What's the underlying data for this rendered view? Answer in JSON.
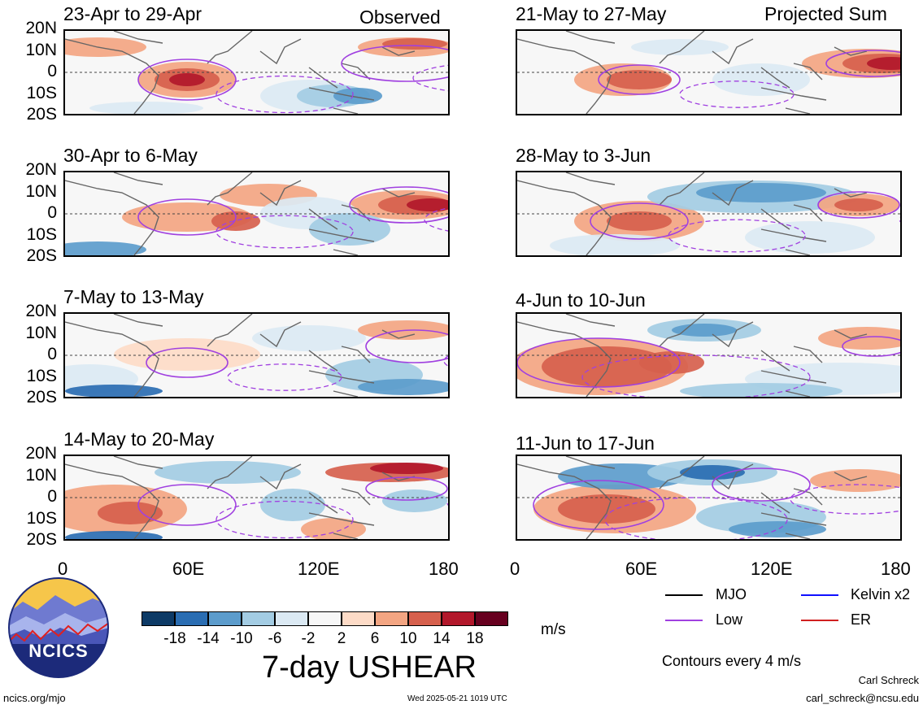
{
  "header_left": "Observed",
  "header_right": "Projected Sum",
  "panels": [
    {
      "title": "23-Apr to 29-Apr"
    },
    {
      "title": "30-Apr to 6-May"
    },
    {
      "title": "7-May to 13-May"
    },
    {
      "title": "14-May to 20-May"
    },
    {
      "title": "21-May to 27-May"
    },
    {
      "title": "28-May to 3-Jun"
    },
    {
      "title": "4-Jun to 10-Jun"
    },
    {
      "title": "11-Jun to 17-Jun"
    }
  ],
  "lat_labels": [
    "20N",
    "10N",
    "0",
    "10S",
    "20S"
  ],
  "lon_labels": [
    "0",
    "60E",
    "120E",
    "180"
  ],
  "legend": {
    "mjo": "MJO",
    "kelvin": "Kelvin x2",
    "low": "Low",
    "er": "ER",
    "colors": {
      "mjo": "#000000",
      "kelvin": "#1010ff",
      "low": "#a040e0",
      "er": "#d02020"
    },
    "contours_note": "Contours every 4 m/s"
  },
  "colorbar": {
    "labels": [
      "-18",
      "-14",
      "-10",
      "-6",
      "-2",
      "2",
      "6",
      "10",
      "14",
      "18"
    ],
    "colors": [
      "#0d3a66",
      "#2a6db2",
      "#5c9ccc",
      "#a3cce3",
      "#dbe9f3",
      "#f7f7f7",
      "#fddbc7",
      "#f3a582",
      "#d6604d",
      "#b2182b",
      "#67001f"
    ],
    "unit": "m/s",
    "title": "7-day USHEAR"
  },
  "logo": {
    "text": "NCICS"
  },
  "footer": {
    "url": "ncics.org/mjo",
    "timestamp": "Wed 2025-05-21 1019 UTC",
    "author": "Carl Schreck",
    "email": "carl_schreck@ncsu.edu"
  }
}
